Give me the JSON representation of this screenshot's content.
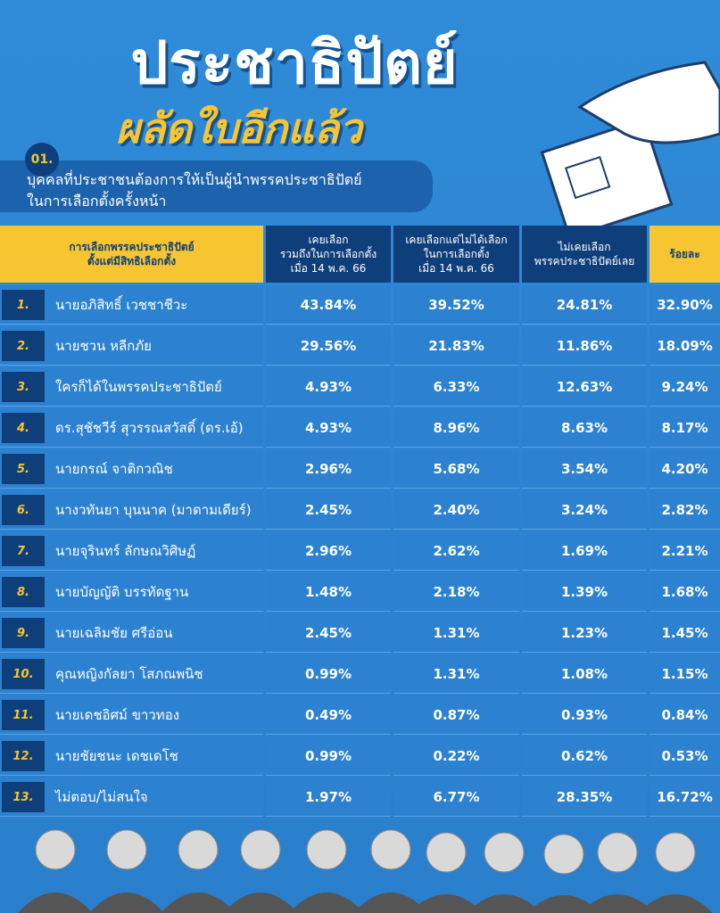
{
  "header": {
    "title": "ประชาธิปัตย์",
    "subtitle": "ผลัดใบอีกแล้ว"
  },
  "question": {
    "number": "01.",
    "lines": [
      "บุคคลที่ประชาชนต้องการให้เป็นผู้นำพรรคประชาธิปัตย์",
      "ในการเลือกตั้งครั้งหน้า"
    ]
  },
  "table": {
    "columns": [
      [
        "การเลือกพรรคประชาธิปัตย์",
        "ตั้งแต่มีสิทธิเลือกตั้ง"
      ],
      [
        "เคยเลือก",
        "รวมถึงในการเลือกตั้ง",
        "เมื่อ 14 พ.ค. 66"
      ],
      [
        "เคยเลือกแต่ไม่ได้เลือก",
        "ในการเลือกตั้ง",
        "เมื่อ 14 พ.ค. 66"
      ],
      [
        "ไม่เคยเลือก",
        "พรรคประชาธิปัตย์เลย"
      ],
      [
        "ร้อยละ"
      ]
    ],
    "rows": [
      [
        "1.",
        "นายอภิสิทธิ์ เวชชาชีวะ",
        "43.84%",
        "39.52%",
        "24.81%",
        "32.90%"
      ],
      [
        "2.",
        "นายชวน หลีกภัย",
        "29.56%",
        "21.83%",
        "11.86%",
        "18.09%"
      ],
      [
        "3.",
        "ใครก็ได้ในพรรคประชาธิปัตย์",
        "4.93%",
        "6.33%",
        "12.63%",
        "9.24%"
      ],
      [
        "4.",
        "ดร.สุชัชวีร์ สุวรรณสวัสดิ์ (ดร.เอ้)",
        "4.93%",
        "8.96%",
        "8.63%",
        "8.17%"
      ],
      [
        "5.",
        "นายกรณ์ จาติกวณิช",
        "2.96%",
        "5.68%",
        "3.54%",
        "4.20%"
      ],
      [
        "6.",
        "นางวทันยา บุนนาค (มาดามเดียร์)",
        "2.45%",
        "2.40%",
        "3.24%",
        "2.82%"
      ],
      [
        "7.",
        "นายจุรินทร์ ลักษณวิศิษฏ์",
        "2.96%",
        "2.62%",
        "1.69%",
        "2.21%"
      ],
      [
        "8.",
        "นายบัญญัติ บรรทัดฐาน",
        "1.48%",
        "2.18%",
        "1.39%",
        "1.68%"
      ],
      [
        "9.",
        "นายเฉลิมชัย ศรีอ่อน",
        "2.45%",
        "1.31%",
        "1.23%",
        "1.45%"
      ],
      [
        "10.",
        "คุณหญิงกัลยา โสภณพนิช",
        "0.99%",
        "1.31%",
        "1.08%",
        "1.15%"
      ],
      [
        "11.",
        "นายเดชอิศม์ ขาวทอง",
        "0.49%",
        "0.87%",
        "0.93%",
        "0.84%"
      ],
      [
        "12.",
        "นายชัยชนะ เดชเดโช",
        "0.99%",
        "0.22%",
        "0.62%",
        "0.53%"
      ],
      [
        "13.",
        "ไม่ตอบ/ไม่สนใจ",
        "1.97%",
        "6.77%",
        "28.35%",
        "16.72%"
      ]
    ]
  }
}
